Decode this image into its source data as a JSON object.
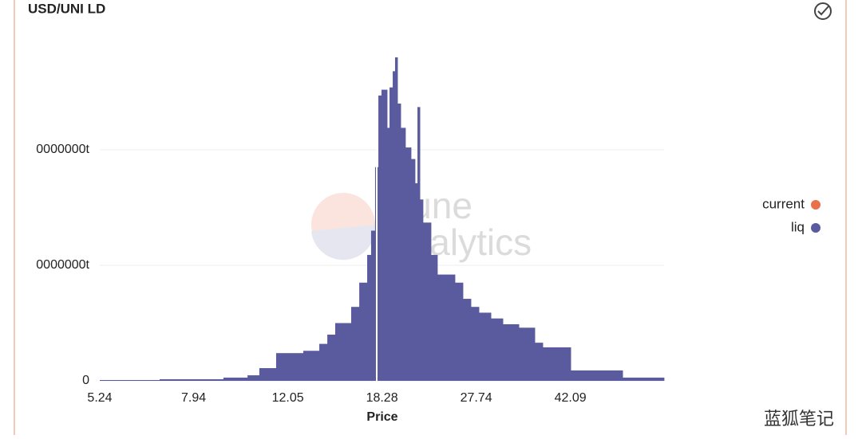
{
  "chart_data": {
    "type": "histogram",
    "title": "USD/UNI LD",
    "x_label": "Price",
    "xscale": "log",
    "xlim": [
      5.24,
      63.73
    ],
    "xticks": [
      5.24,
      7.94,
      12.05,
      18.28,
      27.74,
      42.09
    ],
    "ylim": [
      0,
      30000000
    ],
    "yticks": [
      0,
      {
        "value": 10000000,
        "label": "0000000t"
      },
      {
        "value": 20000000,
        "label": "0000000t"
      }
    ],
    "grid": true,
    "legend": "right",
    "bins": [
      5.24,
      6.83,
      9.06,
      10.08,
      10.62,
      11.44,
      12.9,
      13.85,
      14.35,
      14.86,
      15.95,
      16.53,
      17.12,
      17.42,
      17.73,
      17.99,
      18.24,
      18.7,
      18.9,
      19.17,
      19.37,
      19.58,
      19.86,
      20.28,
      20.79,
      21.16,
      21.39,
      21.62,
      21.92,
      22.71,
      23.36,
      25.25,
      26.16,
      27.1,
      28.08,
      29.61,
      31.22,
      33.51,
      35.96,
      37.25,
      42.16,
      53.05,
      63.73
    ],
    "series": [
      {
        "name": "current",
        "color": "#e8704a",
        "line_color": "#ffffff",
        "x": [
          17.86
        ]
      },
      {
        "name": "liq",
        "color": "#5a5a9e",
        "values": [
          70000,
          140000,
          280000,
          480000,
          1100000,
          2400000,
          2600000,
          3200000,
          4000000,
          5000000,
          6400000,
          8500000,
          10900000,
          13000000,
          18500000,
          24700000,
          25200000,
          21900000,
          25400000,
          26800000,
          28000000,
          24000000,
          21900000,
          20200000,
          19200000,
          17100000,
          23700000,
          15700000,
          13700000,
          10900000,
          9200000,
          8500000,
          7100000,
          6400000,
          5900000,
          5400000,
          4900000,
          4600000,
          3300000,
          2900000,
          900000,
          280000
        ]
      }
    ],
    "watermark": [
      "Dune",
      "Analytics"
    ],
    "credit": "蓝狐笔记"
  }
}
